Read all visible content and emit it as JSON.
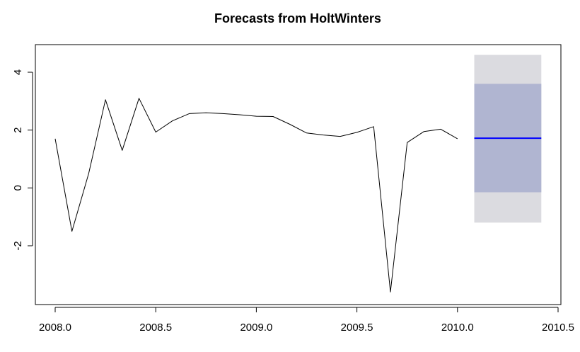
{
  "chart_data": {
    "type": "line",
    "title": "Forecasts from HoltWinters",
    "xlabel": "",
    "ylabel": "",
    "xlim": [
      2008.0,
      2010.5
    ],
    "ylim": [
      -4,
      5
    ],
    "x_ticks": [
      2008.0,
      2008.5,
      2009.0,
      2009.5,
      2010.0,
      2010.5
    ],
    "x_tick_labels": [
      "2008.0",
      "2008.5",
      "2009.0",
      "2009.5",
      "2010.0",
      "2010.5"
    ],
    "y_ticks": [
      -2,
      0,
      2,
      4
    ],
    "y_tick_labels": [
      "-2",
      "0",
      "2",
      "4"
    ],
    "grid": false,
    "series": [
      {
        "kind": "observed",
        "color": "#000000",
        "x": [
          2008.0,
          2008.0833,
          2008.1667,
          2008.25,
          2008.3333,
          2008.4167,
          2008.5,
          2008.5833,
          2008.6667,
          2008.75,
          2008.8333,
          2008.9167,
          2009.0,
          2009.0833,
          2009.1667,
          2009.25,
          2009.3333,
          2009.4167,
          2009.5,
          2009.5833,
          2009.6667,
          2009.75,
          2009.8333,
          2009.9167,
          2010.0
        ],
        "y": [
          1.7,
          -1.5,
          0.5,
          3.05,
          1.3,
          3.1,
          1.93,
          2.32,
          2.57,
          2.6,
          2.57,
          2.53,
          2.48,
          2.47,
          2.2,
          1.9,
          1.83,
          1.78,
          1.92,
          2.12,
          -3.6,
          1.57,
          1.95,
          2.03,
          1.7
        ]
      },
      {
        "kind": "forecast",
        "color": "#0000ff",
        "x": [
          2010.0833,
          2010.4167
        ],
        "y": [
          1.72,
          1.72
        ]
      }
    ],
    "intervals": [
      {
        "level": 95,
        "color": "#dbdbe0",
        "x": [
          2010.0833,
          2010.4167
        ],
        "lower": -1.2,
        "upper": 4.6
      },
      {
        "level": 80,
        "color": "#b0b5d1",
        "x": [
          2010.0833,
          2010.4167
        ],
        "lower": -0.15,
        "upper": 3.6
      }
    ]
  }
}
